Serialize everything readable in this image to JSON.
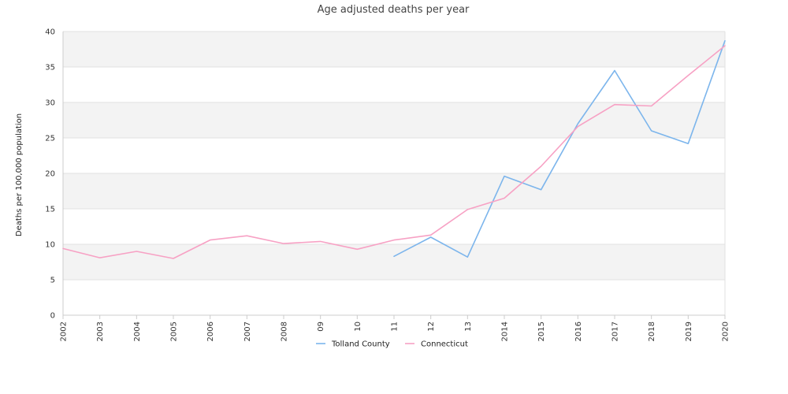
{
  "chart_data": {
    "type": "line",
    "title": "Age adjusted deaths per year",
    "ylabel": "Deaths per 100,000 population",
    "xlabel": "",
    "x": [
      "2002",
      "2003",
      "2004",
      "2005",
      "2006",
      "2007",
      "2008",
      "09",
      "10",
      "11",
      "12",
      "13",
      "2014",
      "2015",
      "2016",
      "2017",
      "2018",
      "2019",
      "2020"
    ],
    "ylim": [
      0,
      40
    ],
    "yticks": [
      "0",
      "5",
      "10",
      "15",
      "20",
      "25",
      "30",
      "35",
      "40"
    ],
    "grid": "horizontal alternating bands",
    "legend_position": "bottom",
    "series": [
      {
        "name": "Tolland County",
        "color": "#7cb5ec",
        "values": [
          null,
          null,
          null,
          null,
          null,
          null,
          null,
          null,
          null,
          8.3,
          11.0,
          8.2,
          19.6,
          17.7,
          27.0,
          34.5,
          26.0,
          24.2,
          38.7
        ]
      },
      {
        "name": "Connecticut",
        "color": "#f7a1c4",
        "values": [
          9.4,
          8.1,
          9.0,
          8.0,
          10.6,
          11.2,
          10.1,
          10.4,
          9.3,
          10.6,
          11.3,
          14.9,
          16.5,
          21.0,
          26.6,
          29.7,
          29.5,
          33.8,
          38.0
        ]
      }
    ]
  }
}
